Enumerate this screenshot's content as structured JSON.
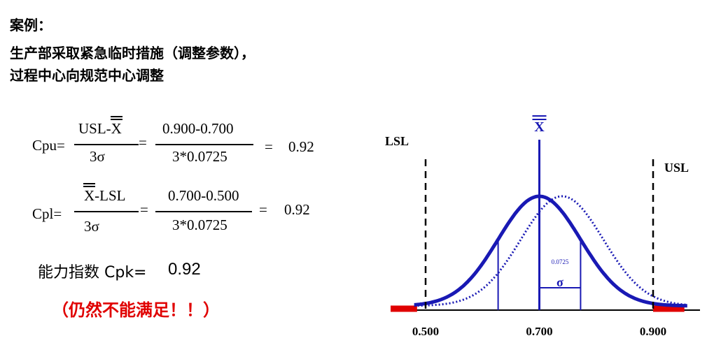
{
  "header": {
    "line1": "案例：",
    "line2": "生产部采取紧急临时措施（调整参数），",
    "line3": "过程中心向规范中心调整"
  },
  "cpu": {
    "label": "Cpu=",
    "num_pre": "USL-",
    "num_x": "X",
    "den": "3σ",
    "eq1": "=",
    "num2": "0.900-0.700",
    "den2": "3*0.0725",
    "eq2": "=",
    "result": "0.92"
  },
  "cpl": {
    "label": "Cpl=",
    "num_x": "X",
    "num_post": "-LSL",
    "den": "3σ",
    "eq1": "=",
    "num2": "0.700-0.500",
    "den2": "3*0.0725",
    "eq2": "=",
    "result": "0.92"
  },
  "cpk": {
    "label": "能力指数 Cpk=",
    "value": "0.92"
  },
  "note": "（仍然不能满足！！）",
  "colors": {
    "curve": "#1919b4",
    "spec_out": "#e00000",
    "note": "#e00000"
  },
  "chart_data": {
    "type": "line",
    "series": [
      {
        "style": "solid",
        "mean": 0.7,
        "sigma": 0.0725
      },
      {
        "style": "dotted",
        "mean": 0.74,
        "sigma": 0.0725
      }
    ],
    "xlim": [
      0.44,
      0.96
    ],
    "x_ticks": [
      "0.500",
      "0.700",
      "0.900"
    ],
    "lsl": {
      "label": "LSL",
      "value": 0.5
    },
    "usl": {
      "label": "USL",
      "value": 0.9
    },
    "mean_label": "X",
    "sigma_label": "σ",
    "sigma_value_label": "0.0725"
  }
}
